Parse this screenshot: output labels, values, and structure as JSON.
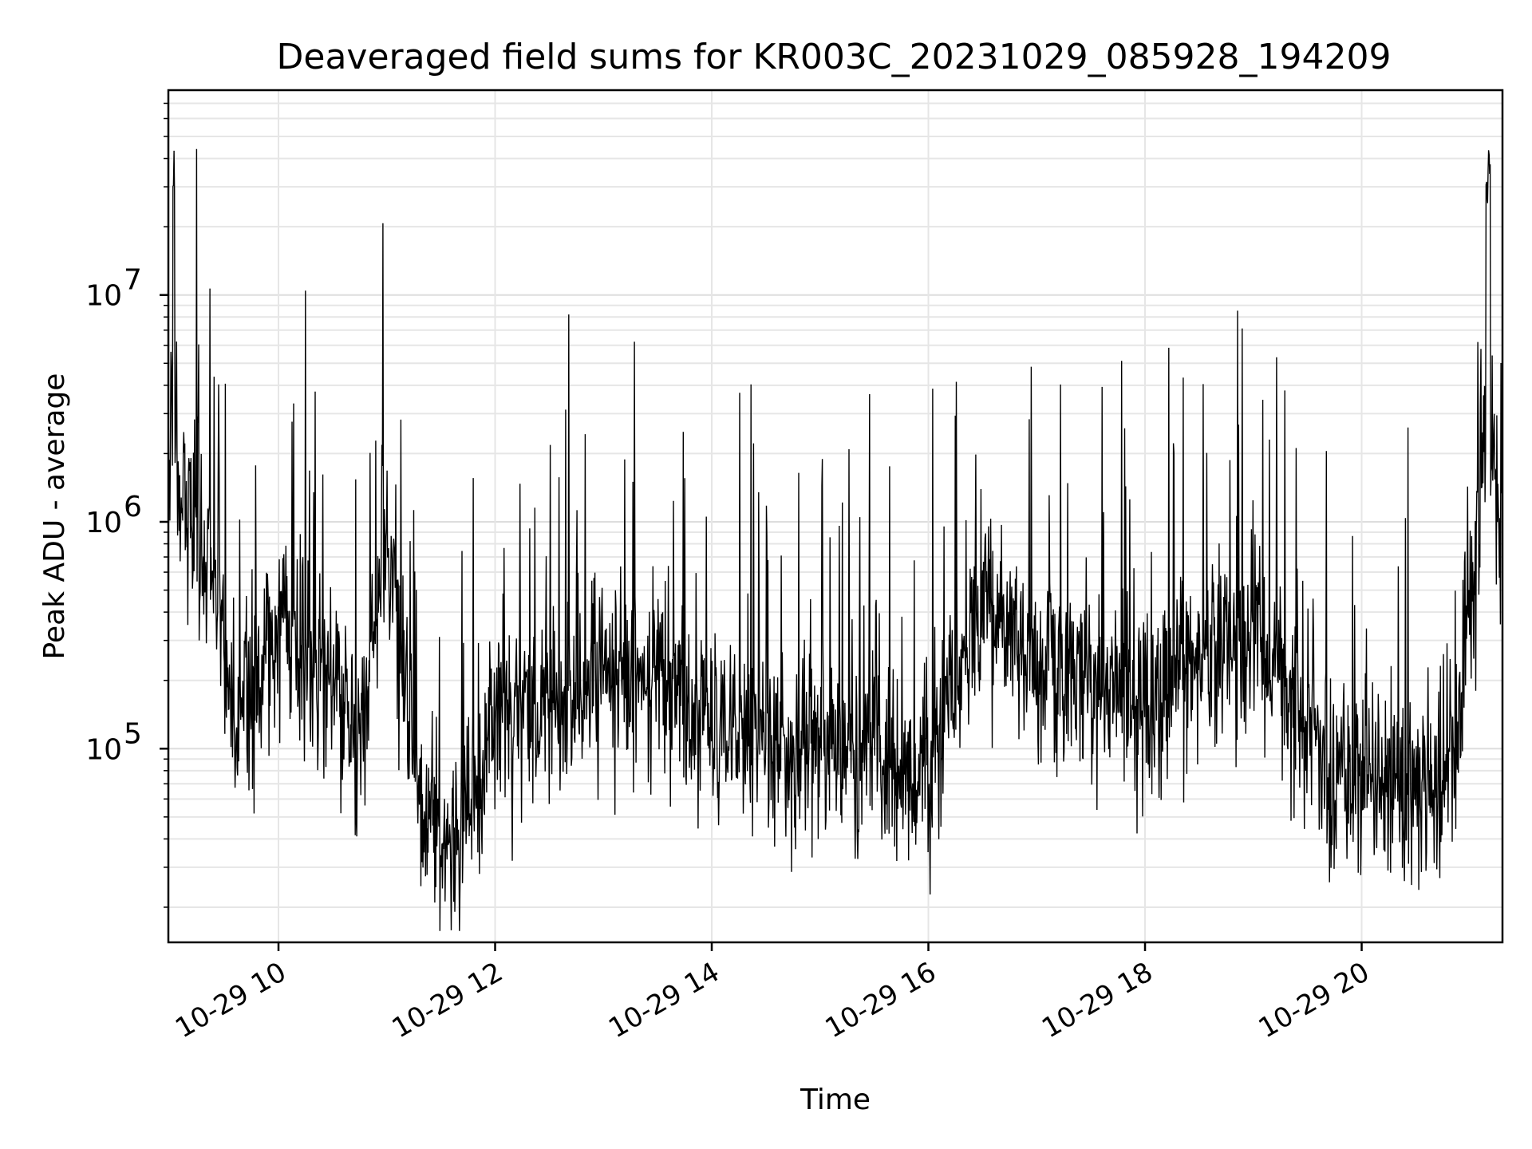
{
  "chart_data": {
    "type": "line",
    "title": "Deaveraged field sums for KR003C_20231029_085928_194209",
    "xlabel": "Time",
    "ylabel": "Peak ADU - average",
    "yscale": "log",
    "ylim": [
      14000,
      80000000
    ],
    "xlim": [
      "2023-10-29 08:59",
      "2023-10-29 21:18"
    ],
    "grid": true,
    "x_ticks": [
      "10-29 10",
      "10-29 12",
      "10-29 14",
      "10-29 16",
      "10-29 18",
      "10-29 20"
    ],
    "y_ticks": [
      {
        "label": "10",
        "exponent": "5",
        "value": 100000
      },
      {
        "label": "10",
        "exponent": "6",
        "value": 1000000
      },
      {
        "label": "10",
        "exponent": "7",
        "value": 10000000
      }
    ],
    "line_color": "#000000",
    "series": [
      {
        "x": [
          "2023-10-29 09:00",
          "2023-10-29 09:02",
          "2023-10-29 09:04",
          "2023-10-29 09:06",
          "2023-10-29 09:10",
          "2023-10-29 09:20",
          "2023-10-29 09:30",
          "2023-10-29 09:36",
          "2023-10-29 09:45",
          "2023-10-29 10:00",
          "2023-10-29 10:15",
          "2023-10-29 10:30",
          "2023-10-29 10:45",
          "2023-10-29 11:00",
          "2023-10-29 11:10",
          "2023-10-29 11:20",
          "2023-10-29 11:30",
          "2023-10-29 11:40",
          "2023-10-29 12:00",
          "2023-10-29 12:30",
          "2023-10-29 12:50",
          "2023-10-29 13:00",
          "2023-10-29 13:30",
          "2023-10-29 14:00",
          "2023-10-29 14:30",
          "2023-10-29 15:00",
          "2023-10-29 15:30",
          "2023-10-29 15:50",
          "2023-10-29 16:10",
          "2023-10-29 16:30",
          "2023-10-29 17:00",
          "2023-10-29 17:30",
          "2023-10-29 18:00",
          "2023-10-29 18:30",
          "2023-10-29 19:00",
          "2023-10-29 19:30",
          "2023-10-29 19:45",
          "2023-10-29 20:00",
          "2023-10-29 20:30",
          "2023-10-29 20:45",
          "2023-10-29 20:55",
          "2023-10-29 21:05",
          "2023-10-29 21:10",
          "2023-10-29 21:15",
          "2023-10-29 21:18"
        ],
        "y": [
          1500000,
          50000000,
          2000000,
          1200000,
          1000000,
          800000,
          300000,
          120000,
          200000,
          350000,
          250000,
          180000,
          100000,
          800000,
          200000,
          60000,
          40000,
          35000,
          150000,
          150000,
          200000,
          250000,
          180000,
          130000,
          100000,
          100000,
          90000,
          70000,
          150000,
          400000,
          250000,
          200000,
          180000,
          250000,
          300000,
          150000,
          60000,
          80000,
          70000,
          60000,
          200000,
          900000,
          45000000,
          800000,
          900000
        ]
      }
    ]
  }
}
